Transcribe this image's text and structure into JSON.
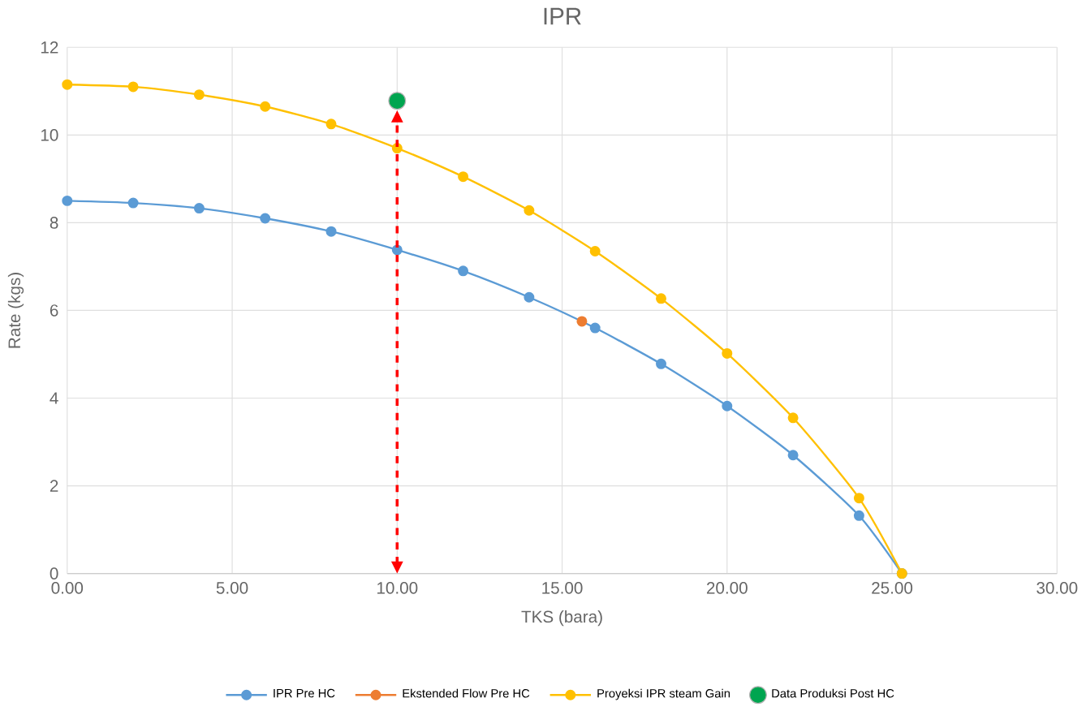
{
  "chart_data": {
    "type": "line",
    "title": "IPR",
    "xlabel": "TKS (bara)",
    "ylabel": "Rate (kgs)",
    "xlim": [
      0,
      30
    ],
    "xticks": [
      {
        "value": 0,
        "label": "0.00"
      },
      {
        "value": 5,
        "label": "5.00"
      },
      {
        "value": 10,
        "label": "10.00"
      },
      {
        "value": 15,
        "label": "15.00"
      },
      {
        "value": 20,
        "label": "20.00"
      },
      {
        "value": 25,
        "label": "25.00"
      },
      {
        "value": 30,
        "label": "30.00"
      }
    ],
    "ylim": [
      0,
      12
    ],
    "yticks": [
      0,
      2,
      4,
      6,
      8,
      10,
      12
    ],
    "grid": true,
    "legend": "bottom",
    "marker": "circle",
    "series": [
      {
        "name": "IPR Pre HC",
        "color": "#5b9bd5",
        "x": [
          0,
          2,
          4,
          6,
          8,
          10,
          12,
          14,
          16,
          18,
          20,
          22,
          24,
          25.3
        ],
        "values": [
          8.5,
          8.45,
          8.33,
          8.1,
          7.8,
          7.38,
          6.9,
          6.3,
          5.6,
          4.78,
          3.82,
          2.7,
          1.32,
          0
        ]
      },
      {
        "name": "Ekstended Flow Pre HC",
        "color": "#ed7d31",
        "x": [
          15.6
        ],
        "values": [
          5.75
        ]
      },
      {
        "name": "Proyeksi IPR steam Gain",
        "color": "#ffc000",
        "x": [
          0,
          2,
          4,
          6,
          8,
          10,
          12,
          14,
          16,
          18,
          20,
          22,
          24,
          25.3
        ],
        "values": [
          11.15,
          11.1,
          10.92,
          10.65,
          10.25,
          9.7,
          9.05,
          8.28,
          7.35,
          6.27,
          5.02,
          3.55,
          1.72,
          0
        ]
      },
      {
        "name": "Data Produksi Post HC",
        "type": "scatter",
        "color": "#00a550",
        "x": [
          10
        ],
        "values": [
          10.78
        ]
      }
    ],
    "ref_lines": [
      {
        "axis": "x",
        "value": 10,
        "color": "#ff0000",
        "line_style": "dashed"
      }
    ]
  }
}
